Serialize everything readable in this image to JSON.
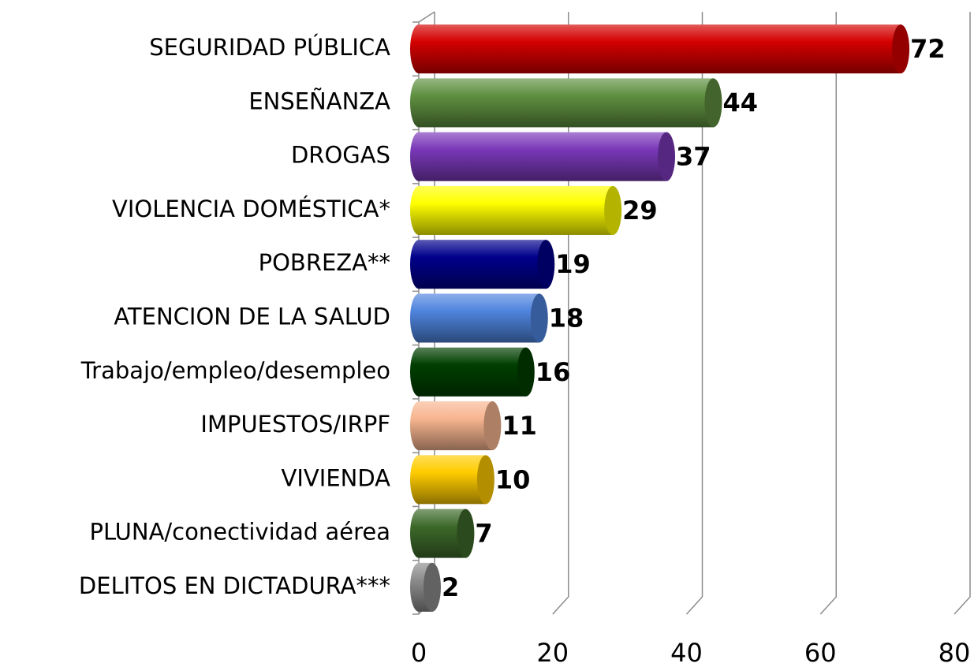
{
  "chart_data": {
    "type": "bar",
    "orientation": "horizontal",
    "categories": [
      "SEGURIDAD PÚBLICA",
      "ENSEÑANZA",
      "DROGAS",
      "VIOLENCIA DOMÉSTICA*",
      "POBREZA**",
      "ATENCION DE LA SALUD",
      "Trabajo/empleo/desempleo",
      "IMPUESTOS/IRPF",
      "VIVIENDA",
      "PLUNA/conectividad aérea",
      "DELITOS EN DICTADURA***"
    ],
    "values": [
      72,
      44,
      37,
      29,
      19,
      18,
      16,
      11,
      10,
      7,
      2
    ],
    "colors": [
      "#d40000",
      "#5f9040",
      "#7a38b8",
      "#ffff00",
      "#00008c",
      "#4f84de",
      "#003f00",
      "#f7b590",
      "#ffcc00",
      "#3d6a2a",
      "#8c8c8c"
    ],
    "xlim": [
      0,
      80
    ],
    "xticks": [
      0,
      20,
      40,
      60,
      80
    ],
    "grid": true
  }
}
